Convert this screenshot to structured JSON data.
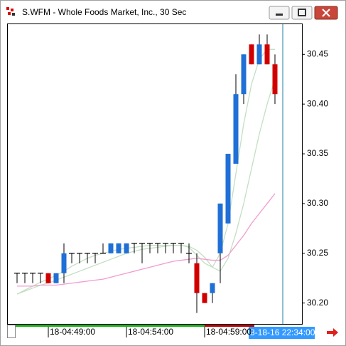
{
  "chart_data": {
    "type": "candlestick",
    "title": "S.WFM - Whole Foods Market, Inc., 30 Sec",
    "categories": [
      null,
      null,
      null,
      null,
      "18-04:49:00",
      null,
      null,
      null,
      null,
      null,
      null,
      null,
      null,
      null,
      "18-04:54:00",
      null,
      null,
      null,
      null,
      null,
      null,
      null,
      null,
      null,
      "18-04:59:00",
      null,
      null,
      null,
      null,
      null,
      null,
      null,
      null,
      null
    ],
    "open": [
      30.23,
      30.23,
      30.23,
      30.23,
      30.23,
      30.22,
      30.23,
      30.25,
      30.25,
      30.25,
      30.25,
      30.25,
      30.25,
      30.25,
      30.25,
      30.26,
      30.26,
      30.26,
      30.26,
      30.26,
      30.26,
      30.26,
      30.25,
      30.24,
      30.21,
      30.21,
      30.25,
      30.28,
      30.34,
      30.41,
      30.46,
      30.44,
      30.46,
      30.44
    ],
    "high": [
      30.23,
      30.23,
      30.23,
      30.23,
      30.23,
      30.23,
      30.26,
      30.25,
      30.25,
      30.25,
      30.25,
      30.26,
      30.26,
      30.26,
      30.26,
      30.26,
      30.26,
      30.26,
      30.26,
      30.26,
      30.26,
      30.26,
      30.26,
      30.25,
      30.21,
      30.22,
      30.3,
      30.35,
      30.43,
      30.45,
      30.46,
      30.47,
      30.47,
      30.45
    ],
    "low": [
      30.22,
      30.22,
      30.22,
      30.22,
      30.22,
      30.22,
      30.22,
      30.24,
      30.24,
      30.24,
      30.24,
      30.25,
      30.25,
      30.25,
      30.25,
      30.25,
      30.24,
      30.25,
      30.25,
      30.25,
      30.25,
      30.25,
      30.24,
      30.19,
      30.2,
      30.2,
      30.22,
      30.28,
      30.34,
      30.4,
      30.44,
      30.44,
      30.44,
      30.4
    ],
    "close": [
      30.23,
      30.23,
      30.23,
      30.23,
      30.22,
      30.23,
      30.25,
      30.25,
      30.25,
      30.25,
      30.25,
      30.25,
      30.26,
      30.26,
      30.26,
      30.26,
      30.26,
      30.26,
      30.26,
      30.26,
      30.26,
      30.26,
      30.25,
      30.21,
      30.2,
      30.22,
      30.3,
      30.35,
      30.41,
      30.45,
      30.44,
      30.46,
      30.44,
      30.41
    ],
    "up_color": "#1f6fd6",
    "down_color": "#d10000",
    "doji_color": "#000000",
    "overlays": [
      {
        "color": "#c3dfc3",
        "values": [
          30.209,
          30.213,
          30.217,
          30.221,
          30.224,
          30.228,
          30.232,
          30.237,
          30.241,
          30.245,
          30.248,
          30.25,
          30.252,
          30.254,
          30.255,
          30.256,
          30.257,
          30.258,
          30.258,
          30.258,
          30.258,
          30.258,
          30.256,
          30.248,
          30.24,
          30.236,
          30.25,
          30.28,
          30.33,
          30.38,
          30.42,
          30.445,
          30.455,
          30.455
        ]
      },
      {
        "color": "#c3dfc3",
        "values": [
          30.209,
          30.212,
          30.215,
          30.218,
          30.22,
          30.223,
          30.226,
          30.229,
          30.232,
          30.235,
          30.238,
          30.241,
          30.244,
          30.247,
          30.25,
          30.252,
          30.254,
          30.255,
          30.256,
          30.257,
          30.258,
          30.258,
          30.257,
          30.253,
          30.246,
          30.236,
          30.232,
          30.245,
          30.27,
          30.3,
          30.335,
          30.37,
          30.4,
          30.425
        ]
      },
      {
        "color": "#f29ccf",
        "values": [
          30.217,
          30.217,
          30.217,
          30.218,
          30.218,
          30.218,
          30.219,
          30.22,
          30.221,
          30.222,
          30.223,
          30.224,
          30.226,
          30.228,
          30.23,
          30.232,
          30.234,
          30.236,
          30.238,
          30.24,
          30.242,
          30.243,
          30.244,
          30.245,
          30.244,
          30.243,
          30.243,
          30.248,
          30.258,
          30.268,
          30.28,
          30.29,
          30.3,
          30.31
        ]
      }
    ],
    "ylim": [
      30.179,
      30.481
    ],
    "yticks": [
      {
        "value": 30.2,
        "label": "30.20"
      },
      30.25,
      {
        "value": 30.3,
        "label": "30.30"
      },
      30.35,
      {
        "value": 30.4,
        "label": "30.40"
      },
      30.45
    ],
    "grid": false,
    "cursor_label": "8-18-16 22:34:00"
  }
}
